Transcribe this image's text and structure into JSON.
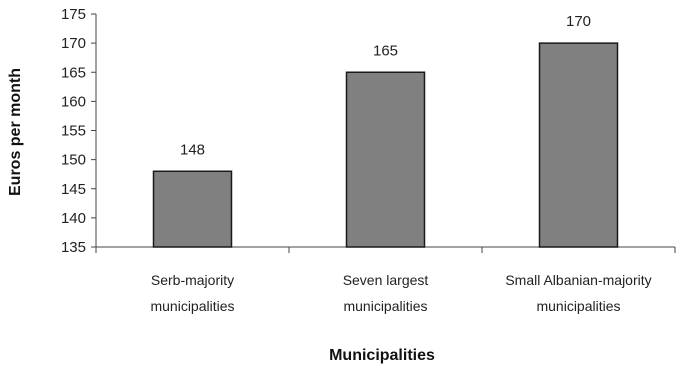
{
  "chart_data": {
    "type": "bar",
    "categories": [
      [
        "Serb-majority",
        "municipalities"
      ],
      [
        "Seven largest",
        "municipalities"
      ],
      [
        "Small Albanian-majority",
        "municipalities"
      ]
    ],
    "values": [
      148,
      165,
      170
    ],
    "data_labels": [
      "148",
      "165",
      "170"
    ],
    "xlabel": "Municipalities",
    "ylabel": "Euros per month",
    "ylim": [
      135,
      175
    ],
    "yticks": [
      135,
      140,
      145,
      150,
      155,
      160,
      165,
      170,
      175
    ],
    "grid": false,
    "legend": "none",
    "colors": {
      "bar_fill": "#808080",
      "bar_stroke": "#1a1a1a",
      "axis": "#444444"
    }
  }
}
